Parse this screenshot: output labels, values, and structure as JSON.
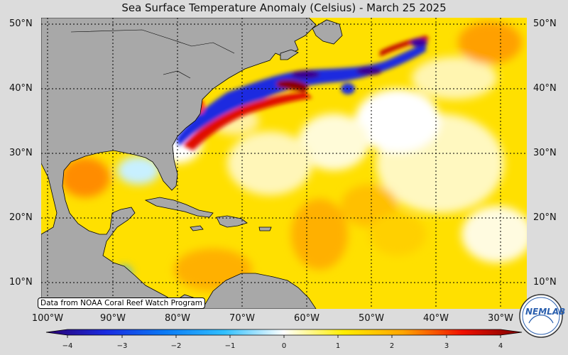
{
  "title": "Sea Surface Temperature Anomaly (Celsius) - March 25 2025",
  "source_note": "Data from NOAA Coral Reef Watch Program",
  "logo_text": "NEMLAB",
  "map": {
    "units": "Celsius",
    "lon_range": [
      -102,
      -27
    ],
    "lat_range": [
      6,
      51
    ],
    "gridlines": "dotted",
    "land_color": "#a8a8a8"
  },
  "lat_labels": [
    "50°N",
    "40°N",
    "30°N",
    "20°N",
    "10°N"
  ],
  "lon_labels": [
    "100°W",
    "90°W",
    "80°W",
    "70°W",
    "60°W",
    "50°W",
    "40°W",
    "30°W"
  ],
  "colorbar": {
    "min": -4,
    "max": 4,
    "ticks": [
      "−4",
      "−3",
      "−2",
      "−1",
      "0",
      "1",
      "2",
      "3",
      "4"
    ],
    "colors": [
      "#2a0070",
      "#1a2be0",
      "#0a7af5",
      "#30c0ff",
      "#ffffff",
      "#ffee00",
      "#ffa500",
      "#f01000",
      "#7a0000"
    ]
  }
}
